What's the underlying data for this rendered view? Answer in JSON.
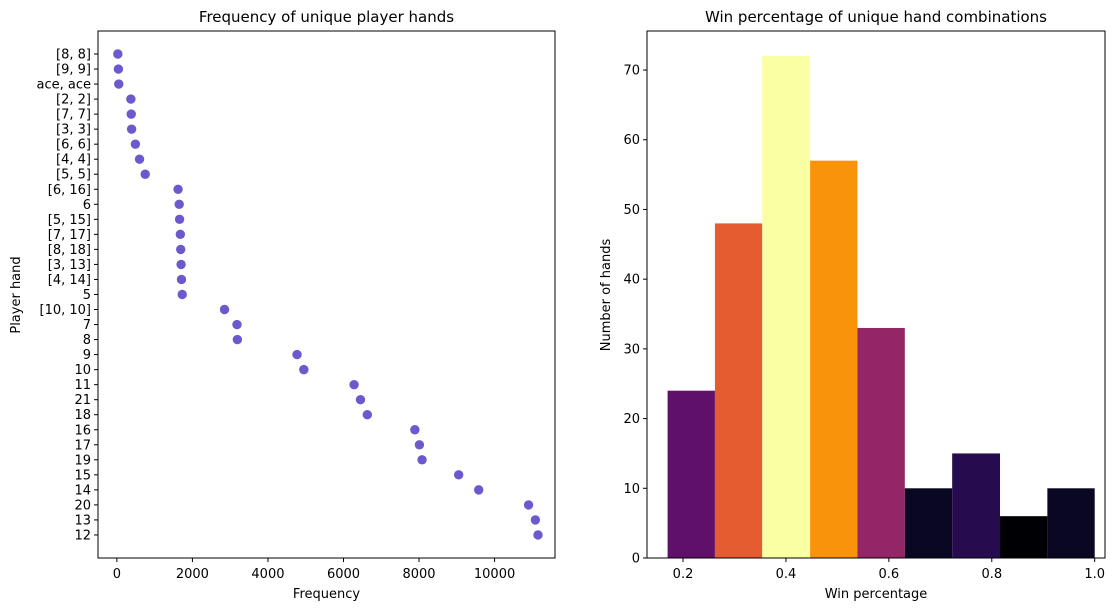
{
  "chart_data": [
    {
      "type": "scatter",
      "title": "Frequency of unique player hands",
      "xlabel": "Frequency",
      "ylabel": "Player hand",
      "xlim": [
        -500,
        11600
      ],
      "xticks": [
        0,
        2000,
        4000,
        6000,
        8000,
        10000
      ],
      "grid": false,
      "marker_color": "#6a5acd",
      "categories": [
        "[8, 8]",
        "[9, 9]",
        "ace, ace",
        "[2, 2]",
        "[7, 7]",
        "[3, 3]",
        "[6, 6]",
        "[4, 4]",
        "[5, 5]",
        "[6, 16]",
        "6",
        "[5, 15]",
        "[7, 17]",
        "[8, 18]",
        "[3, 13]",
        "[4, 14]",
        "5",
        "[10, 10]",
        "7",
        "8",
        "9",
        "10",
        "11",
        "21",
        "18",
        "16",
        "17",
        "19",
        "15",
        "14",
        "20",
        "13",
        "12"
      ],
      "values": [
        25,
        40,
        50,
        370,
        380,
        390,
        490,
        600,
        750,
        1620,
        1650,
        1660,
        1680,
        1690,
        1700,
        1710,
        1730,
        2850,
        3180,
        3190,
        4770,
        4950,
        6280,
        6450,
        6630,
        7890,
        8010,
        8080,
        9050,
        9580,
        10900,
        11080,
        11150
      ]
    },
    {
      "type": "bar",
      "title": "Win percentage of unique hand combinations",
      "xlabel": "Win percentage",
      "ylabel": "Number of hands",
      "xlim": [
        0.13,
        1.02
      ],
      "ylim": [
        0,
        75.6
      ],
      "xticks": [
        0.2,
        0.4,
        0.6,
        0.8,
        1.0
      ],
      "yticks": [
        0,
        10,
        20,
        30,
        40,
        50,
        60,
        70
      ],
      "grid": false,
      "bins": [
        {
          "start": 0.17,
          "end": 0.262,
          "count": 24,
          "color": "#5f1068"
        },
        {
          "start": 0.262,
          "end": 0.354,
          "count": 48,
          "color": "#e55c30"
        },
        {
          "start": 0.354,
          "end": 0.447,
          "count": 72,
          "color": "#fbffa3"
        },
        {
          "start": 0.447,
          "end": 0.539,
          "count": 57,
          "color": "#f8930a"
        },
        {
          "start": 0.539,
          "end": 0.631,
          "count": 33,
          "color": "#932667"
        },
        {
          "start": 0.631,
          "end": 0.723,
          "count": 10,
          "color": "#0a0722"
        },
        {
          "start": 0.723,
          "end": 0.816,
          "count": 15,
          "color": "#260c4f"
        },
        {
          "start": 0.816,
          "end": 0.908,
          "count": 6,
          "color": "#000004"
        },
        {
          "start": 0.908,
          "end": 1.0,
          "count": 10,
          "color": "#0a0722"
        }
      ]
    }
  ]
}
